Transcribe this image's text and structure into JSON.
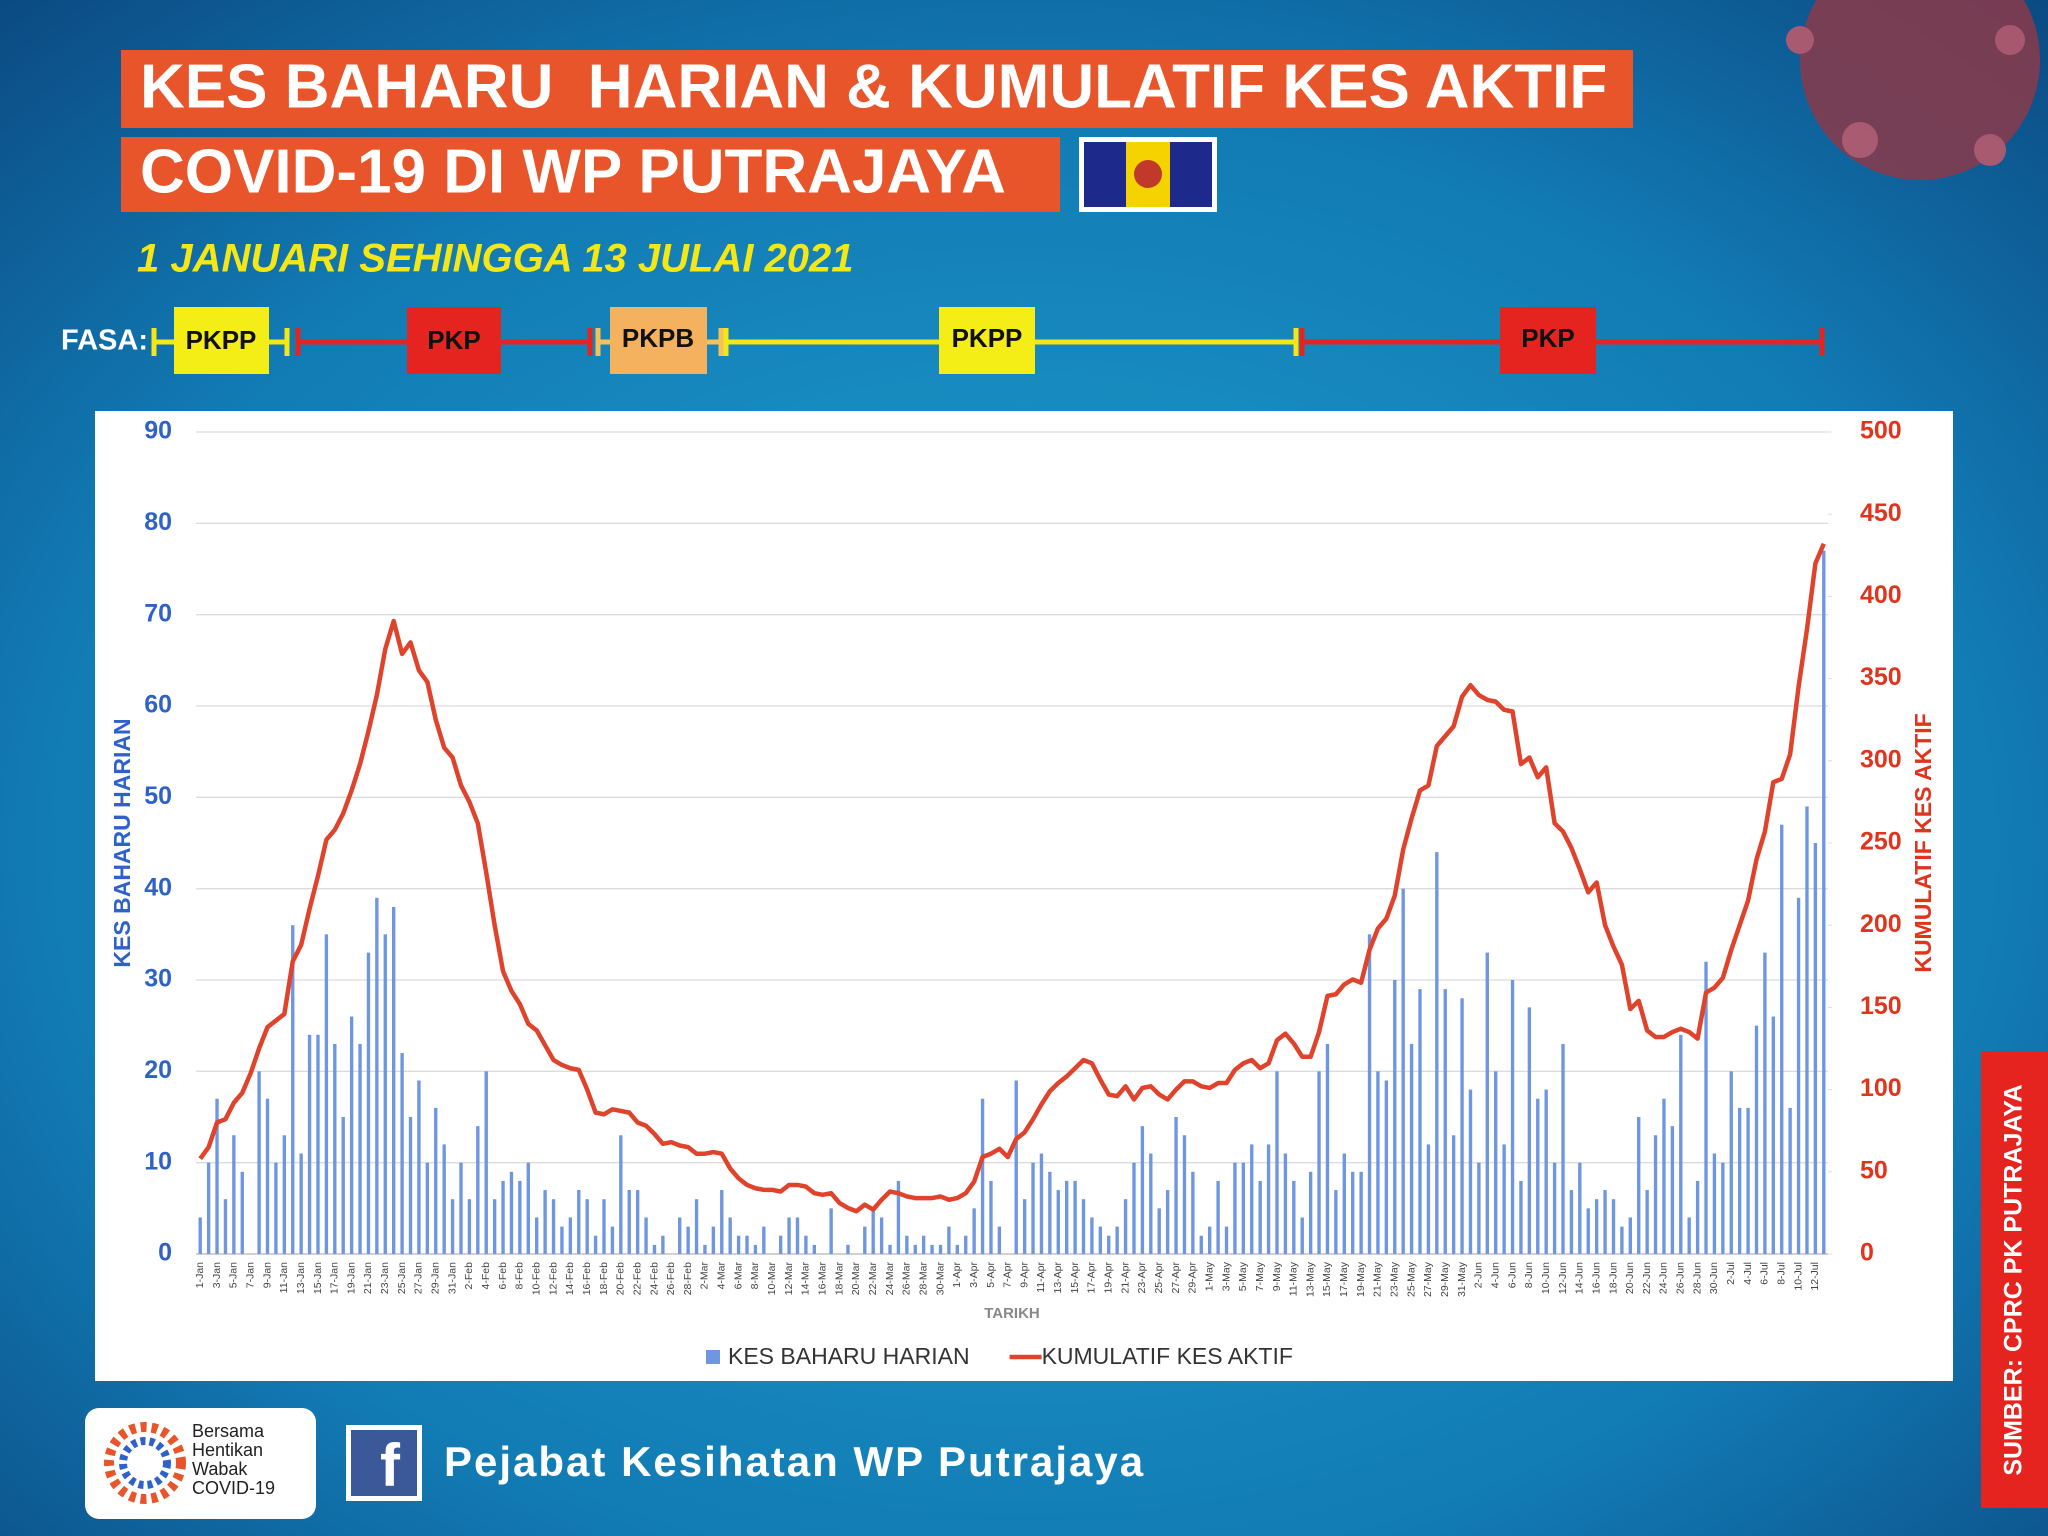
{
  "header": {
    "title_lines": [
      "KES BAHARU  HARIAN & KUMULATIF KES AKTIF",
      "COVID-19 DI WP PUTRAJAYA"
    ],
    "subtitle": "1 JANUARI SEHINGGA 13 JULAI 2021"
  },
  "phases": {
    "label": "FASA:",
    "items": [
      "PKPP",
      "PKP",
      "PKPB",
      "PKPP",
      "PKP"
    ]
  },
  "chart_data": {
    "type": "bar",
    "xlabel": "TARIKH",
    "ylabel": "KES BAHARU HARIAN",
    "y2label": "KUMULATIF KES AKTIF",
    "categories": [
      "1-Jan",
      null,
      "3-Jan",
      null,
      "5-Jan",
      null,
      "7-Jan",
      null,
      "9-Jan",
      null,
      "11-Jan",
      null,
      "13-Jan",
      null,
      "15-Jan",
      null,
      "17-Jan",
      null,
      "19-Jan",
      null,
      "21-Jan",
      null,
      "23-Jan",
      null,
      "25-Jan",
      null,
      "27-Jan",
      null,
      "29-Jan",
      null,
      "31-Jan",
      null,
      "2-Feb",
      null,
      "4-Feb",
      null,
      "6-Feb",
      null,
      "8-Feb",
      null,
      "10-Feb",
      null,
      "12-Feb",
      null,
      "14-Feb",
      null,
      "16-Feb",
      null,
      "18-Feb",
      null,
      "20-Feb",
      null,
      "22-Feb",
      null,
      "24-Feb",
      null,
      "26-Feb",
      null,
      "28-Feb",
      null,
      "2-Mar",
      null,
      "4-Mar",
      null,
      "6-Mar",
      null,
      "8-Mar",
      null,
      "10-Mar",
      null,
      "12-Mar",
      null,
      "14-Mar",
      null,
      "16-Mar",
      null,
      "18-Mar",
      null,
      "20-Mar",
      null,
      "22-Mar",
      null,
      "24-Mar",
      null,
      "26-Mar",
      null,
      "28-Mar",
      null,
      "30-Mar",
      null,
      "1-Apr",
      null,
      "3-Apr",
      null,
      "5-Apr",
      null,
      "7-Apr",
      null,
      "9-Apr",
      null,
      "11-Apr",
      null,
      "13-Apr",
      null,
      "15-Apr",
      null,
      "17-Apr",
      null,
      "19-Apr",
      null,
      "21-Apr",
      null,
      "23-Apr",
      null,
      "25-Apr",
      null,
      "27-Apr",
      null,
      "29-Apr",
      null,
      "1-May",
      null,
      "3-May",
      null,
      "5-May",
      null,
      "7-May",
      null,
      "9-May",
      null,
      "11-May",
      null,
      "13-May",
      null,
      "15-May",
      null,
      "17-May",
      null,
      "19-May",
      null,
      "21-May",
      null,
      "23-May",
      null,
      "25-May",
      null,
      "27-May",
      null,
      "29-May",
      null,
      "31-May",
      null,
      "2-Jun",
      null,
      "4-Jun",
      null,
      "6-Jun",
      null,
      "8-Jun",
      null,
      "10-Jun",
      null,
      "12-Jun",
      null,
      "14-Jun",
      null,
      "16-Jun",
      null,
      "18-Jun",
      null,
      "20-Jun",
      null,
      "22-Jun",
      null,
      "24-Jun",
      null,
      "26-Jun",
      null,
      "28-Jun",
      null,
      "30-Jun",
      null,
      "2-Jul",
      null,
      "4-Jul",
      null,
      "6-Jul",
      null,
      "8-Jul",
      null,
      "10-Jul",
      null,
      "12-Jul",
      null
    ],
    "series": [
      {
        "name": "KES BAHARU HARIAN",
        "type": "bar",
        "color": "#6f96e0",
        "values": [
          4,
          10,
          17,
          6,
          13,
          9,
          0,
          20,
          17,
          10,
          13,
          36,
          11,
          24,
          24,
          35,
          23,
          15,
          26,
          23,
          33,
          39,
          35,
          38,
          22,
          15,
          19,
          10,
          16,
          12,
          6,
          10,
          6,
          14,
          20,
          6,
          8,
          9,
          8,
          10,
          4,
          7,
          6,
          3,
          4,
          7,
          6,
          2,
          6,
          3,
          13,
          7,
          7,
          4,
          1,
          2,
          0,
          4,
          3,
          6,
          1,
          3,
          7,
          4,
          2,
          2,
          1,
          3,
          0,
          2,
          4,
          4,
          2,
          1,
          0,
          5,
          0,
          1,
          0,
          3,
          5,
          4,
          1,
          8,
          2,
          1,
          2,
          1,
          1,
          3,
          1,
          2,
          5,
          17,
          8,
          3,
          0,
          19,
          6,
          10,
          11,
          9,
          7,
          8,
          8,
          6,
          4,
          3,
          2,
          3,
          6,
          10,
          14,
          11,
          5,
          7,
          15,
          13,
          9,
          2,
          3,
          8,
          3,
          10,
          10,
          12,
          8,
          12,
          20,
          11,
          8,
          4,
          9,
          20,
          23,
          7,
          11,
          9,
          9,
          35,
          20,
          19,
          30,
          40,
          23,
          29,
          12,
          44,
          29,
          13,
          28,
          18,
          10,
          33,
          20,
          12,
          30,
          8,
          27,
          17,
          18,
          10,
          23,
          7,
          10,
          5,
          6,
          7,
          6,
          3,
          4,
          15,
          7,
          13,
          17,
          14,
          24,
          4,
          8,
          32,
          11,
          10,
          20,
          16,
          16,
          25,
          33,
          26,
          47,
          16,
          39,
          49,
          45,
          77
        ]
      },
      {
        "name": "KUMULATIF KES AKTIF",
        "type": "line",
        "axis": "y2",
        "color": "#e0432c",
        "values": [
          58,
          65,
          80,
          82,
          92,
          98,
          110,
          125,
          138,
          142,
          146,
          178,
          188,
          210,
          230,
          252,
          258,
          268,
          282,
          298,
          318,
          340,
          368,
          385,
          365,
          372,
          355,
          348,
          325,
          308,
          302,
          285,
          275,
          262,
          232,
          200,
          172,
          160,
          152,
          140,
          136,
          127,
          118,
          115,
          113,
          112,
          100,
          86,
          85,
          88,
          87,
          86,
          80,
          78,
          73,
          67,
          68,
          66,
          65,
          61,
          61,
          62,
          61,
          52,
          46,
          42,
          40,
          39,
          39,
          38,
          42,
          42,
          41,
          37,
          36,
          37,
          31,
          28,
          26,
          30,
          27,
          33,
          38,
          37,
          35,
          34,
          34,
          34,
          35,
          33,
          34,
          37,
          44,
          59,
          61,
          64,
          59,
          70,
          74,
          82,
          91,
          99,
          104,
          108,
          113,
          118,
          116,
          106,
          97,
          96,
          102,
          94,
          101,
          102,
          97,
          94,
          100,
          105,
          105,
          102,
          101,
          104,
          104,
          112,
          116,
          118,
          113,
          116,
          130,
          134,
          128,
          120,
          120,
          135,
          157,
          158,
          164,
          167,
          165,
          185,
          198,
          204,
          218,
          246,
          265,
          282,
          285,
          309,
          315,
          321,
          339,
          346,
          340,
          337,
          336,
          331,
          330,
          298,
          302,
          290,
          296,
          262,
          257,
          247,
          234,
          220,
          226,
          200,
          187,
          176,
          149,
          154,
          136,
          132,
          132,
          135,
          137,
          135,
          131,
          159,
          162,
          168,
          185,
          200,
          215,
          240,
          257,
          287,
          289,
          304,
          345,
          380,
          420,
          432
        ]
      }
    ],
    "ylim": [
      0,
      90
    ],
    "yticks": [
      0,
      10,
      20,
      30,
      40,
      50,
      60,
      70,
      80,
      90
    ],
    "y2lim": [
      0,
      500
    ],
    "y2ticks": [
      0,
      50,
      100,
      150,
      200,
      250,
      300,
      350,
      400,
      450,
      500
    ],
    "grid": true,
    "legend": "bottom"
  },
  "footer": {
    "logo_lines": [
      "Bersama",
      "Hentikan",
      "Wabak",
      "COVID-19"
    ],
    "page": "Pejabat Kesihatan WP Putrajaya",
    "source": "SUMBER: CPRC PK PUTRAJAYA"
  }
}
